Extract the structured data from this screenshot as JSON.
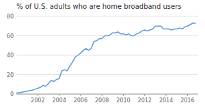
{
  "chart_data": {
    "type": "line",
    "title": "% of U.S. adults who are home broadband users",
    "color": "#5b9bd5",
    "grid": true,
    "xlim": [
      2000,
      2017
    ],
    "ylim": [
      0,
      80
    ],
    "xticks": [
      2002,
      2004,
      2006,
      2008,
      2010,
      2012,
      2014,
      2016
    ],
    "yticks": [
      0,
      20,
      40,
      60,
      80
    ],
    "x": [
      2000,
      2000.5,
      2001,
      2001.5,
      2001.75,
      2002,
      2002.25,
      2002.5,
      2002.75,
      2003,
      2003.25,
      2003.5,
      2003.75,
      2004,
      2004.25,
      2004.5,
      2004.75,
      2005,
      2005.25,
      2005.5,
      2005.75,
      2006,
      2006.25,
      2006.5,
      2006.75,
      2007,
      2007.25,
      2007.5,
      2007.75,
      2008,
      2008.25,
      2008.5,
      2008.75,
      2009,
      2009.25,
      2009.5,
      2009.75,
      2010,
      2010.25,
      2010.5,
      2010.75,
      2011,
      2011.25,
      2011.5,
      2011.75,
      2012,
      2012.25,
      2012.5,
      2012.75,
      2013,
      2013.25,
      2013.5,
      2013.75,
      2014,
      2014.25,
      2014.5,
      2014.75,
      2015,
      2015.25,
      2015.5,
      2015.75,
      2016,
      2016.5,
      2016.75
    ],
    "values": [
      1,
      2,
      3,
      4,
      5,
      6,
      7,
      9,
      8,
      11,
      14,
      13,
      15,
      16,
      24,
      25,
      24,
      29,
      33,
      38,
      40,
      42,
      45,
      47,
      45,
      47,
      54,
      55,
      57,
      57,
      60,
      60,
      61,
      63,
      63,
      64,
      62,
      62,
      61,
      62,
      60,
      60,
      62,
      63,
      65,
      66,
      65,
      66,
      67,
      70,
      70,
      70,
      67,
      67,
      67,
      66,
      67,
      67,
      68,
      67,
      69,
      70,
      73,
      73
    ]
  }
}
